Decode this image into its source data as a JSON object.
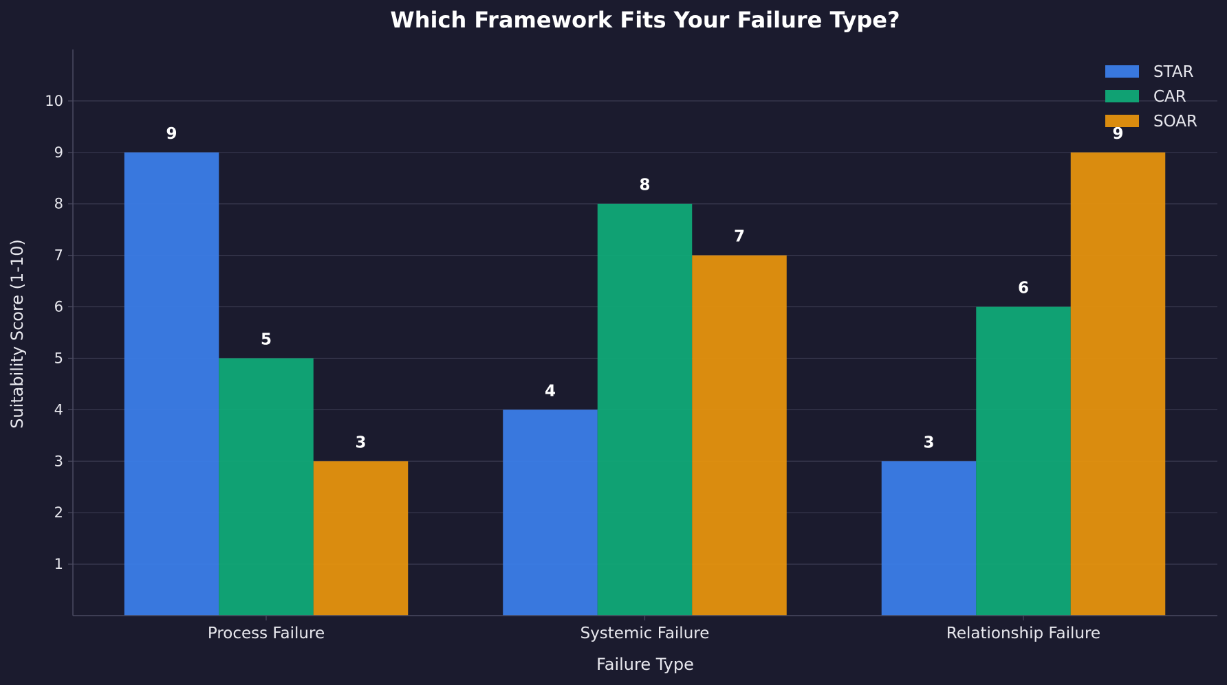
{
  "chart_data": {
    "type": "bar",
    "title": "Which Framework Fits Your Failure Type?",
    "xlabel": "Failure Type",
    "ylabel": "Suitability Score (1-10)",
    "categories": [
      "Process Failure",
      "Systemic Failure",
      "Relationship Failure"
    ],
    "series": [
      {
        "name": "STAR",
        "color": "#3b7de8",
        "values": [
          9,
          4,
          3
        ]
      },
      {
        "name": "CAR",
        "color": "#10a977",
        "values": [
          5,
          8,
          6
        ]
      },
      {
        "name": "SOAR",
        "color": "#e5920e",
        "values": [
          3,
          7,
          9
        ]
      }
    ],
    "ylim": [
      0,
      11
    ],
    "yticks": [
      1,
      2,
      3,
      4,
      5,
      6,
      7,
      8,
      9,
      10
    ],
    "grid": true,
    "legend": "top-right",
    "colors": {
      "background": "#1b1b2e",
      "grid": "#3a3a50",
      "axis": "#4a4a60",
      "text": "#e8e8ee"
    }
  }
}
